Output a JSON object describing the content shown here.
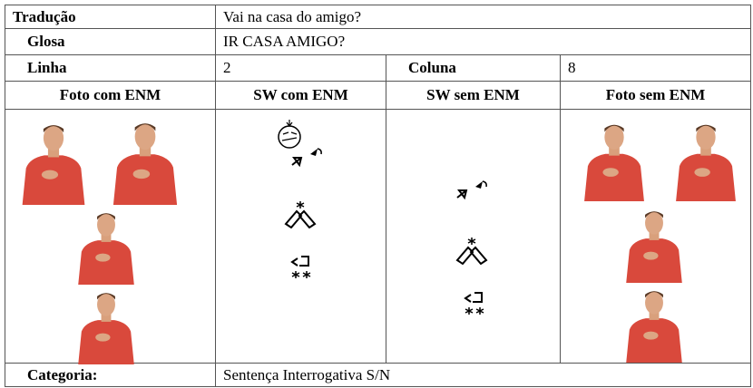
{
  "table": {
    "traducao": {
      "label": "Tradução",
      "value": "Vai na casa do amigo?"
    },
    "glosa": {
      "label": "Glosa",
      "value": "IR CASA AMIGO?"
    },
    "linha": {
      "label": "Linha",
      "value": 2
    },
    "coluna": {
      "label": "Coluna",
      "value": 8
    },
    "headers": [
      "Foto com ENM",
      "SW com ENM",
      "SW sem ENM",
      "Foto sem ENM"
    ],
    "categoria": {
      "label": "Categoria:",
      "value": "Sentença Interrogativa S/N"
    }
  }
}
